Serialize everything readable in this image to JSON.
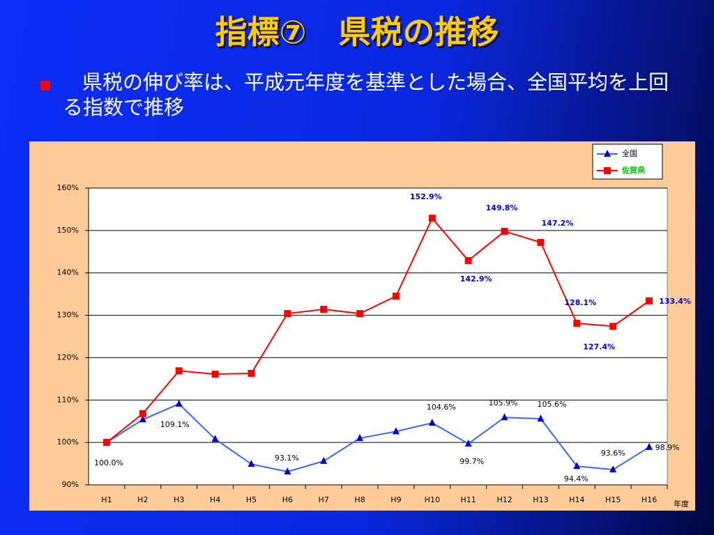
{
  "slide": {
    "title": "指標⑦　県税の推移",
    "bullet": "県税の伸び率は、平成元年度を基準とした場合、全国平均を上回る指数で推移"
  },
  "chart_data": {
    "type": "line",
    "categories": [
      "H1",
      "H2",
      "H3",
      "H4",
      "H5",
      "H6",
      "H7",
      "H8",
      "H9",
      "H10",
      "H11",
      "H12",
      "H13",
      "H14",
      "H15",
      "H16"
    ],
    "x_label": "年度",
    "series": [
      {
        "name": "全国",
        "color": "#3366ff",
        "marker": "triangle",
        "values": [
          100.0,
          105.4,
          109.1,
          100.8,
          94.9,
          93.1,
          95.6,
          101.0,
          102.6,
          104.6,
          99.7,
          105.9,
          105.6,
          94.4,
          93.6,
          98.9
        ],
        "value_labels": [
          "100.0%",
          null,
          "109.1%",
          null,
          null,
          "93.1%",
          null,
          null,
          null,
          "104.6%",
          "99.7%",
          "105.9%",
          "105.6%",
          "94.4%",
          "93.6%",
          "98.9%"
        ]
      },
      {
        "name": "佐賀県",
        "color": "#ff0000",
        "marker": "square",
        "values": [
          100.0,
          106.8,
          116.9,
          116.1,
          116.3,
          130.4,
          131.4,
          130.4,
          134.5,
          152.9,
          142.9,
          149.8,
          147.2,
          128.1,
          127.4,
          133.4
        ],
        "value_labels": [
          null,
          null,
          null,
          null,
          null,
          null,
          null,
          null,
          null,
          "152.9%",
          "142.9%",
          "149.8%",
          "147.2%",
          "128.1%",
          "127.4%",
          "133.4%"
        ]
      }
    ],
    "ylim": [
      90,
      160
    ],
    "yticks": [
      {
        "value": 90,
        "label": "90%"
      },
      {
        "value": 100,
        "label": "100%"
      },
      {
        "value": 110,
        "label": "110%"
      },
      {
        "value": 120,
        "label": "120%"
      },
      {
        "value": 130,
        "label": "130%"
      },
      {
        "value": 140,
        "label": "140%"
      },
      {
        "value": 150,
        "label": "150%"
      },
      {
        "value": 160,
        "label": "160%"
      }
    ],
    "grid": true,
    "legend": "top-right"
  }
}
